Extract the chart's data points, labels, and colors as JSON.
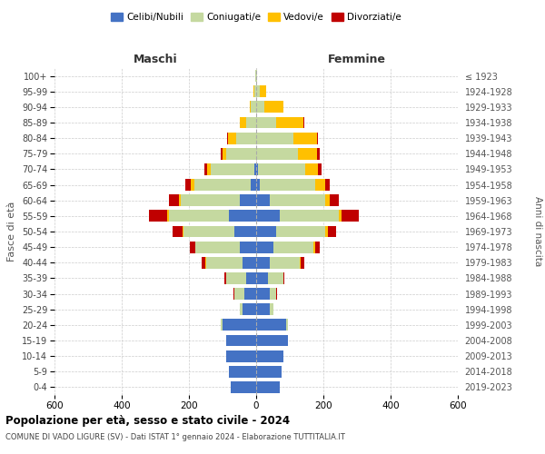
{
  "age_groups": [
    "0-4",
    "5-9",
    "10-14",
    "15-19",
    "20-24",
    "25-29",
    "30-34",
    "35-39",
    "40-44",
    "45-49",
    "50-54",
    "55-59",
    "60-64",
    "65-69",
    "70-74",
    "75-79",
    "80-84",
    "85-89",
    "90-94",
    "95-99",
    "100+"
  ],
  "birth_years": [
    "2019-2023",
    "2014-2018",
    "2009-2013",
    "2004-2008",
    "1999-2003",
    "1994-1998",
    "1989-1993",
    "1984-1988",
    "1979-1983",
    "1974-1978",
    "1969-1973",
    "1964-1968",
    "1959-1963",
    "1954-1958",
    "1949-1953",
    "1944-1948",
    "1939-1943",
    "1934-1938",
    "1929-1933",
    "1924-1928",
    "≤ 1923"
  ],
  "maschi": {
    "celibi": [
      75,
      80,
      90,
      90,
      100,
      40,
      35,
      30,
      40,
      50,
      65,
      80,
      50,
      15,
      5,
      0,
      0,
      0,
      0,
      0,
      0
    ],
    "coniugati": [
      0,
      0,
      0,
      0,
      5,
      10,
      30,
      60,
      110,
      130,
      150,
      180,
      175,
      170,
      130,
      90,
      60,
      30,
      15,
      5,
      2
    ],
    "vedovi": [
      0,
      0,
      0,
      0,
      0,
      0,
      0,
      0,
      2,
      2,
      5,
      5,
      5,
      10,
      10,
      10,
      25,
      20,
      5,
      2,
      0
    ],
    "divorziati": [
      0,
      0,
      0,
      0,
      0,
      0,
      2,
      5,
      10,
      15,
      30,
      55,
      30,
      15,
      10,
      5,
      2,
      0,
      0,
      0,
      0
    ]
  },
  "femmine": {
    "nubili": [
      70,
      75,
      80,
      95,
      90,
      40,
      40,
      35,
      40,
      50,
      60,
      70,
      40,
      10,
      5,
      0,
      0,
      0,
      0,
      0,
      0
    ],
    "coniugate": [
      0,
      0,
      0,
      0,
      5,
      10,
      20,
      45,
      90,
      120,
      145,
      175,
      165,
      165,
      140,
      125,
      110,
      60,
      25,
      10,
      2
    ],
    "vedove": [
      0,
      0,
      0,
      0,
      0,
      0,
      0,
      0,
      2,
      5,
      8,
      10,
      15,
      30,
      40,
      55,
      70,
      80,
      55,
      20,
      2
    ],
    "divorziate": [
      0,
      0,
      0,
      0,
      0,
      2,
      2,
      5,
      10,
      15,
      25,
      50,
      25,
      15,
      10,
      10,
      5,
      2,
      0,
      0,
      0
    ]
  },
  "colors": {
    "celibi_nubili": "#4472c4",
    "coniugati": "#c5d9a0",
    "vedovi": "#ffc000",
    "divorziati": "#c00000"
  },
  "xlim": 600,
  "xlabel_left": "Maschi",
  "xlabel_right": "Femmine",
  "ylabel_left": "Fasce di età",
  "ylabel_right": "Anni di nascita",
  "title": "Popolazione per età, sesso e stato civile - 2024",
  "subtitle": "COMUNE DI VADO LIGURE (SV) - Dati ISTAT 1° gennaio 2024 - Elaborazione TUTTITALIA.IT",
  "legend_labels": [
    "Celibi/Nubili",
    "Coniugati/e",
    "Vedovi/e",
    "Divorziati/e"
  ]
}
